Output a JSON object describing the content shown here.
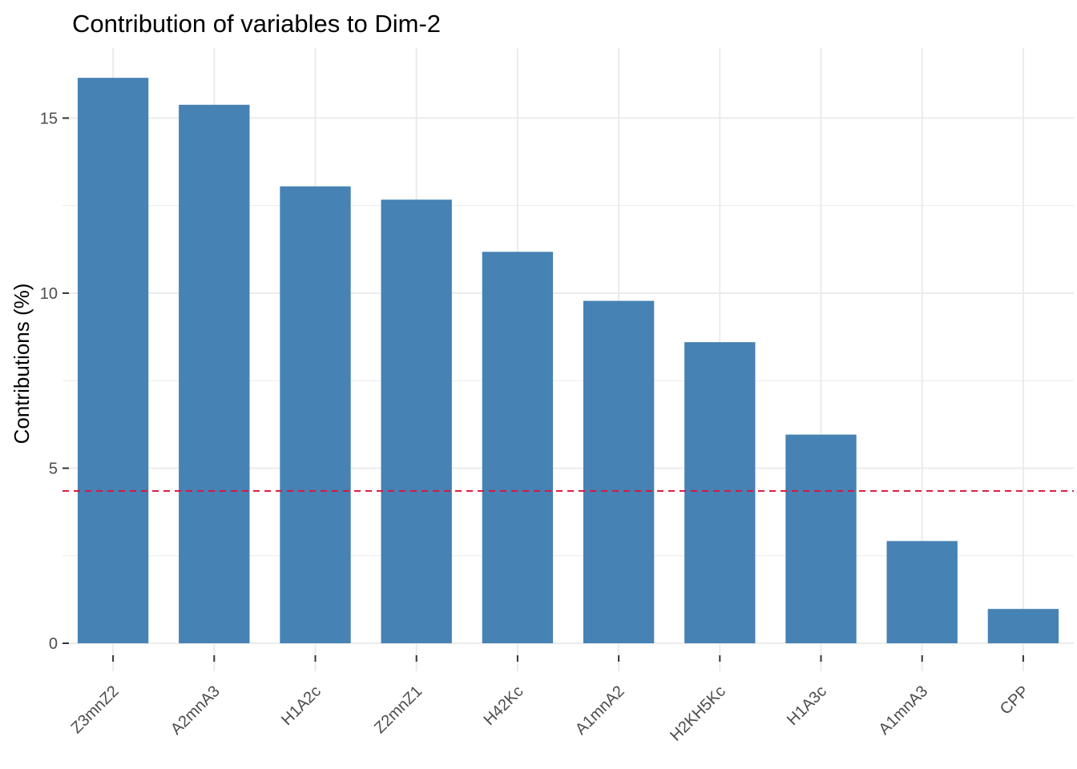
{
  "chart_data": {
    "type": "bar",
    "title": "Contribution of variables to Dim-2",
    "xlabel": "",
    "ylabel": "Contributions (%)",
    "categories": [
      "Z3mnZ2",
      "A2mnA3",
      "H1A2c",
      "Z2mnZ1",
      "H42Kc",
      "A1mnA2",
      "H2KH5Kc",
      "H1A3c",
      "A1mnA3",
      "CPP"
    ],
    "values": [
      16.15,
      15.38,
      13.05,
      12.67,
      11.18,
      9.78,
      8.6,
      5.96,
      2.92,
      0.98
    ],
    "reference_line": {
      "value": 4.35,
      "color": "#dc143c",
      "style": "dashed"
    },
    "ylim": [
      -0.8,
      17.0
    ],
    "yticks": [
      0,
      5,
      10,
      15
    ],
    "grid": true,
    "legend": "none",
    "bar_color": "#4682b4",
    "grid_color": "#ebebeb"
  }
}
